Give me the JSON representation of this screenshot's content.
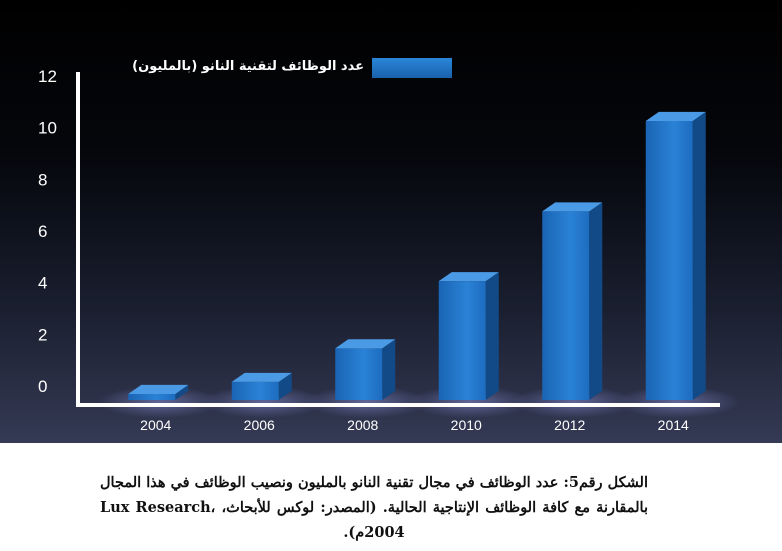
{
  "chart_data": {
    "type": "bar",
    "categories": [
      "2004",
      "2006",
      "2008",
      "2010",
      "2012",
      "2014"
    ],
    "series": [
      {
        "name": "عدد الوظائف لتقنية النانو (بالمليون)",
        "values": [
          0.2,
          0.7,
          2.0,
          4.6,
          7.3,
          10.8
        ]
      }
    ],
    "yticks": [
      "0",
      "2",
      "4",
      "6",
      "8",
      "10",
      "12"
    ],
    "ylim": [
      0,
      12
    ],
    "grid": false,
    "legend_position": "top",
    "bar_color": "#1f6fc2",
    "bar_side_color": "#124a87",
    "bar_top_color": "#4a9ae6",
    "axis_color": "#ffffff",
    "text_color": "#ffffff",
    "background": "dark-gradient"
  },
  "caption": "الشكل رقم5: عدد الوظائف في مجال تقنية النانو بالمليون ونصيب الوظائف في هذا المجال بالمقارنة مع كافة الوظائف الإنتاجية الحالية. (المصدر: لوكس للأبحاث، Lux Research، 2004م)."
}
